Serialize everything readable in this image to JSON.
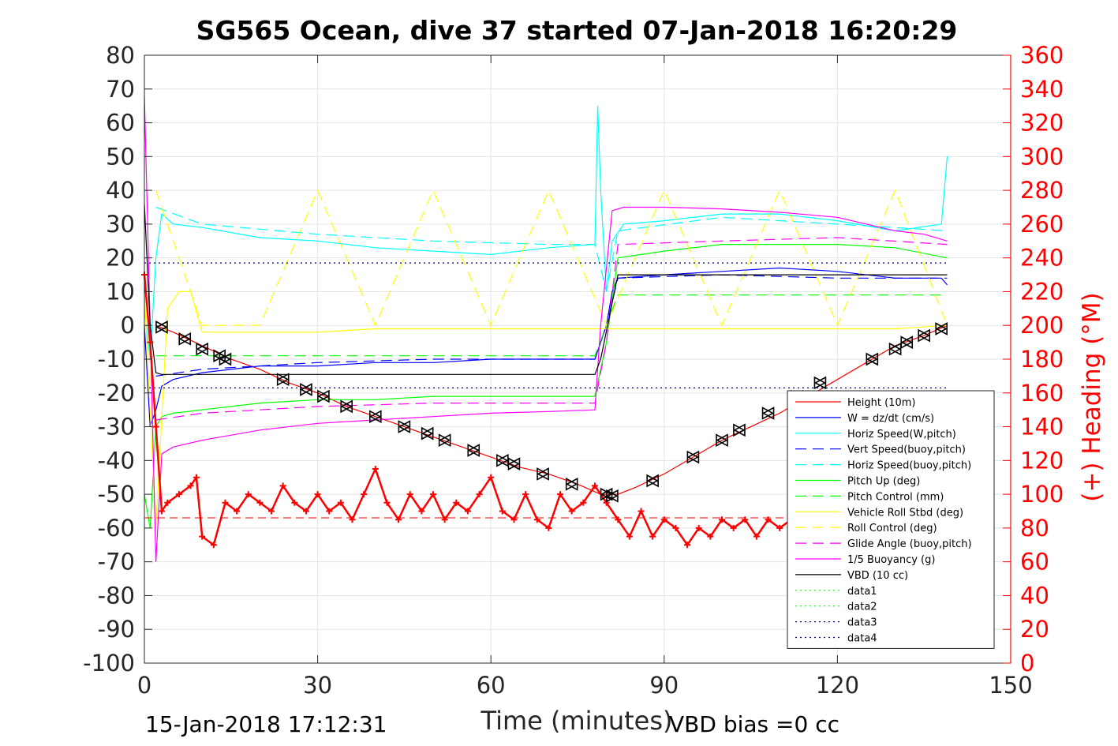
{
  "chart_data": {
    "type": "line",
    "title": "SG565 Ocean, dive 37 started 07-Jan-2018 16:20:29",
    "xlabel": "Time (minutes)",
    "ylabel": "",
    "y2label": "(+) Heading (°M)",
    "xlim": [
      0,
      150
    ],
    "ylim": [
      -100,
      80
    ],
    "y2lim": [
      0,
      360
    ],
    "xticks": [
      0,
      30,
      60,
      90,
      120,
      150
    ],
    "yticks": [
      -100,
      -90,
      -80,
      -70,
      -60,
      -50,
      -40,
      -30,
      -20,
      -10,
      0,
      10,
      20,
      30,
      40,
      50,
      60,
      70,
      80
    ],
    "y2ticks": [
      0,
      20,
      40,
      60,
      80,
      100,
      120,
      140,
      160,
      180,
      200,
      220,
      240,
      260,
      280,
      300,
      320,
      340,
      360
    ],
    "grid": true,
    "legend_position": "lower-right",
    "footer_left": "15-Jan-2018 17:12:31",
    "footer_right": "VBD bias =0 cc",
    "series": [
      {
        "name": "Height (10m)",
        "color": "#ff0000",
        "style": "solid",
        "x": [
          2,
          5,
          10,
          15,
          20,
          25,
          30,
          35,
          40,
          45,
          50,
          55,
          60,
          65,
          70,
          75,
          79,
          82,
          85,
          90,
          95,
          100,
          105,
          110,
          115,
          120,
          125,
          130,
          135,
          139
        ],
        "y": [
          0,
          -2,
          -6,
          -10,
          -13,
          -17,
          -20,
          -24,
          -27,
          -30,
          -33,
          -36,
          -39,
          -42,
          -44,
          -47,
          -50,
          -50,
          -48,
          -44,
          -39,
          -34,
          -30,
          -26,
          -21,
          -16,
          -11,
          -6,
          -3,
          0
        ]
      },
      {
        "name": "W = dz/dt (cm/s)",
        "color": "#0000ff",
        "style": "solid",
        "x": [
          0,
          1,
          2,
          3,
          5,
          10,
          20,
          30,
          40,
          50,
          60,
          70,
          78,
          79,
          80,
          81,
          82,
          90,
          100,
          110,
          120,
          130,
          138,
          139
        ],
        "y": [
          0,
          -30,
          -25,
          -18,
          -16,
          -14,
          -12,
          -12,
          -11,
          -11,
          -10,
          -10,
          -10,
          -5,
          0,
          10,
          14,
          15,
          16,
          17,
          16,
          14,
          14,
          12
        ]
      },
      {
        "name": "Horiz Speed(W,pitch)",
        "color": "#00ffff",
        "style": "solid",
        "x": [
          0,
          1,
          2,
          3,
          5,
          10,
          20,
          30,
          40,
          50,
          60,
          70,
          78,
          78.5,
          79,
          80,
          81,
          83,
          90,
          100,
          110,
          120,
          130,
          138,
          139
        ],
        "y": [
          5,
          -10,
          20,
          33,
          30,
          29,
          26,
          25,
          23,
          22,
          21,
          23,
          24,
          65,
          40,
          10,
          25,
          30,
          31,
          33,
          33,
          31,
          28,
          30,
          50
        ]
      },
      {
        "name": "Vert Speed(buoy,pitch)",
        "color": "#0000ff",
        "style": "dashed",
        "x": [
          2,
          10,
          30,
          50,
          70,
          78,
          80,
          82,
          100,
          120,
          139
        ],
        "y": [
          -15,
          -13,
          -11,
          -10,
          -10,
          -10,
          0,
          14,
          15,
          14,
          14
        ]
      },
      {
        "name": "Horiz Speed(buoy,pitch)",
        "color": "#00ffff",
        "style": "dashed",
        "x": [
          2,
          10,
          30,
          50,
          70,
          78,
          80,
          82,
          100,
          120,
          139
        ],
        "y": [
          35,
          30,
          27,
          25,
          24,
          24,
          10,
          28,
          32,
          30,
          28
        ]
      },
      {
        "name": "Pitch Up (deg)",
        "color": "#00ff00",
        "style": "solid",
        "x": [
          0,
          1,
          2,
          3,
          5,
          10,
          20,
          30,
          40,
          50,
          60,
          70,
          78,
          80,
          82,
          90,
          100,
          110,
          120,
          130,
          139
        ],
        "y": [
          -50,
          -60,
          -30,
          -27,
          -26,
          -25,
          -23,
          -22,
          -22,
          -21,
          -21,
          -21,
          -21,
          -5,
          20,
          22,
          24,
          24,
          24,
          23,
          20
        ]
      },
      {
        "name": "Pitch Control (mm)",
        "color": "#00ff00",
        "style": "dashed",
        "x": [
          2,
          30,
          60,
          78,
          82,
          110,
          139
        ],
        "y": [
          -9,
          -9,
          -9,
          -9,
          9,
          9,
          9
        ]
      },
      {
        "name": "Vehicle Roll Stbd (deg)",
        "color": "#ffff00",
        "style": "solid",
        "x": [
          0,
          2,
          4,
          6,
          8,
          10,
          20,
          30,
          40,
          50,
          60,
          70,
          80,
          90,
          100,
          110,
          120,
          130,
          139
        ],
        "y": [
          10,
          -60,
          5,
          10,
          10,
          -2,
          -2,
          -2,
          -1,
          -1,
          -1,
          -1,
          -1,
          -1,
          -1,
          -1,
          -1,
          -1,
          0
        ]
      },
      {
        "name": "Roll Control (deg)",
        "color": "#ffff00",
        "style": "dashed",
        "x": [
          2,
          10,
          20,
          30,
          40,
          50,
          60,
          70,
          80,
          90,
          100,
          110,
          120,
          130,
          139
        ],
        "y": [
          40,
          0,
          0,
          40,
          0,
          40,
          0,
          40,
          0,
          40,
          0,
          40,
          0,
          40,
          0
        ]
      },
      {
        "name": "Glide Angle (buoy,pitch)",
        "color": "#ff00ff",
        "style": "dashed",
        "x": [
          2,
          10,
          30,
          50,
          70,
          78,
          80,
          82,
          100,
          120,
          139
        ],
        "y": [
          -28,
          -26,
          -24,
          -23,
          -23,
          -23,
          -5,
          24,
          25,
          26,
          24
        ]
      },
      {
        "name": "1/5 Buoyancy (g)",
        "color": "#ff00ff",
        "style": "solid",
        "x": [
          0,
          1,
          2,
          3,
          5,
          10,
          20,
          30,
          40,
          50,
          60,
          70,
          78,
          79,
          81,
          83,
          90,
          100,
          110,
          120,
          130,
          135,
          139
        ],
        "y": [
          68,
          0,
          -70,
          -38,
          -36,
          -34,
          -31,
          -29,
          -28,
          -27,
          -26,
          -25.5,
          -25,
          0,
          34,
          35,
          35,
          34.5,
          33.5,
          32,
          28,
          27,
          25
        ]
      },
      {
        "name": "VBD (10 cc)",
        "color": "#000000",
        "style": "solid",
        "x": [
          0,
          1,
          2,
          3,
          10,
          30,
          60,
          78,
          79,
          82,
          100,
          120,
          139
        ],
        "y": [
          36,
          0,
          -14,
          -14.5,
          -14.5,
          -14.5,
          -14.5,
          -14.5,
          -10,
          15,
          15,
          15,
          15
        ]
      },
      {
        "name": "data1",
        "color": "#00ff00",
        "style": "dotted",
        "x": [
          0,
          139
        ],
        "y": [
          -63,
          -63
        ],
        "visible": false
      },
      {
        "name": "data2",
        "color": "#00ff00",
        "style": "dotted",
        "x": [
          0,
          139
        ],
        "y": [
          -63,
          -63
        ],
        "visible": false
      },
      {
        "name": "data3",
        "color": "#000080",
        "style": "dotted",
        "x": [
          0,
          139
        ],
        "y": [
          18.5,
          18.5
        ]
      },
      {
        "name": "data4",
        "color": "#000080",
        "style": "dotted",
        "x": [
          0,
          139
        ],
        "y": [
          -18.5,
          -18.5
        ]
      }
    ],
    "heading_series": {
      "name": "Heading",
      "color": "#ff0000",
      "style": "plus-markers",
      "axis": "right",
      "x": [
        0,
        1,
        2,
        3,
        4,
        6,
        8,
        9,
        10,
        12,
        14,
        16,
        18,
        20,
        22,
        24,
        26,
        28,
        30,
        32,
        34,
        36,
        38,
        40,
        42,
        44,
        46,
        48,
        50,
        52,
        54,
        56,
        58,
        60,
        62,
        64,
        66,
        68,
        70,
        72,
        74,
        76,
        78,
        80,
        82,
        84,
        86,
        88,
        90,
        92,
        94,
        96,
        98,
        100,
        102,
        104,
        106,
        108,
        110,
        112,
        114,
        116,
        118,
        120
      ],
      "y": [
        230,
        190,
        140,
        90,
        95,
        100,
        105,
        110,
        75,
        70,
        95,
        90,
        100,
        95,
        90,
        105,
        95,
        90,
        100,
        90,
        95,
        85,
        100,
        115,
        95,
        85,
        100,
        90,
        100,
        85,
        95,
        90,
        100,
        110,
        90,
        85,
        100,
        85,
        80,
        100,
        90,
        95,
        105,
        95,
        85,
        75,
        90,
        75,
        85,
        80,
        70,
        80,
        75,
        85,
        80,
        85,
        75,
        85,
        80,
        85,
        80,
        85,
        80,
        85
      ]
    },
    "heading_reference": {
      "color": "#ff0000",
      "style": "dashed",
      "axis": "right",
      "y": 86
    },
    "waypoints": {
      "style": "triangle-markers",
      "color": "#000000",
      "x": [
        3,
        7,
        10,
        13,
        14,
        24,
        28,
        31,
        35,
        40,
        45,
        49,
        52,
        57,
        62,
        64,
        69,
        74,
        80,
        81,
        88,
        95,
        100,
        103,
        108,
        113,
        117,
        126,
        130,
        132,
        135,
        138
      ],
      "y": [
        -0.5,
        -4,
        -7,
        -9,
        -10,
        -16,
        -19,
        -21,
        -24,
        -27,
        -30,
        -32,
        -34,
        -37,
        -40,
        -41,
        -44,
        -47,
        -50,
        -50.5,
        -46,
        -39,
        -34,
        -31,
        -26,
        -21,
        -17,
        -10,
        -7,
        -5,
        -3,
        -1
      ]
    }
  }
}
